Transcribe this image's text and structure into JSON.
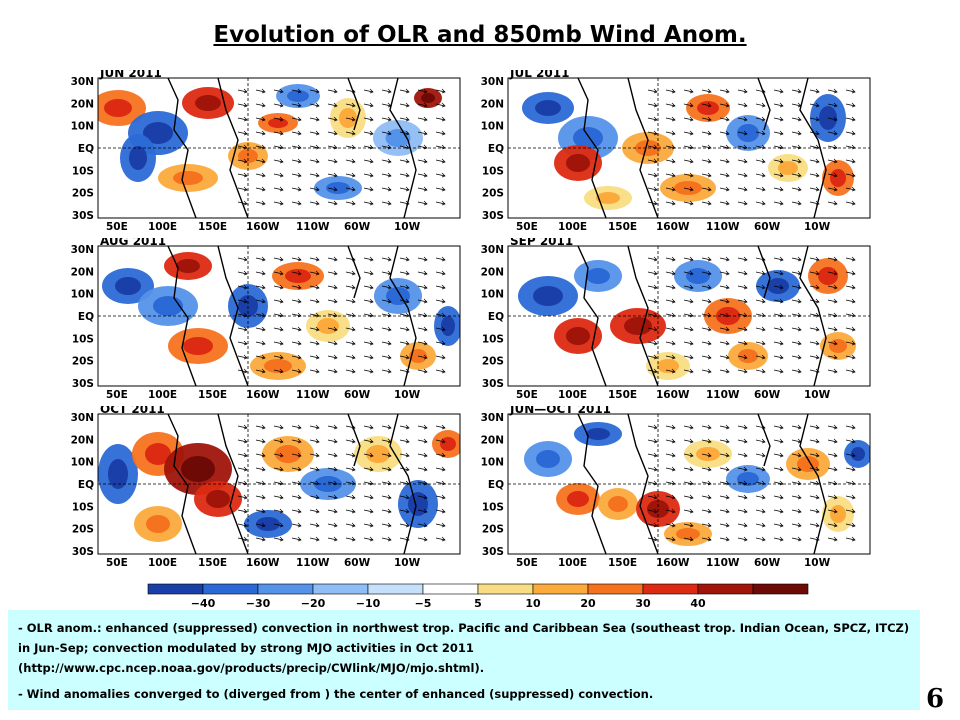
{
  "title": "Evolution of OLR and 850mb Wind Anom.",
  "panels": [
    {
      "label": "JUN 2011"
    },
    {
      "label": "JUL 2011"
    },
    {
      "label": "AUG 2011"
    },
    {
      "label": "SEP 2011"
    },
    {
      "label": "OCT 2011"
    },
    {
      "label": "JUN—OCT 2011"
    }
  ],
  "lat_ticks": [
    "30N",
    "20N",
    "10N",
    "EQ",
    "10S",
    "20S",
    "30S"
  ],
  "lon_ticks": [
    "50E",
    "100E",
    "150E",
    "160W",
    "110W",
    "60W",
    "10W"
  ],
  "colorbar": {
    "labels": [
      "−40",
      "−30",
      "−20",
      "−10",
      "−5",
      "5",
      "10",
      "20",
      "30",
      "40"
    ],
    "colors": [
      "#1a3fa8",
      "#2b6ad6",
      "#5592ea",
      "#8fbdf4",
      "#c4e0fa",
      "#ffffff",
      "#f8dd82",
      "#fcaa3c",
      "#f5731f",
      "#dd2a12",
      "#a0140a",
      "#6e0a06"
    ]
  },
  "notes": [
    "- OLR anom.: enhanced (suppressed) convection in northwest trop. Pacific and Caribbean Sea (southeast trop. Indian Ocean, SPCZ, ITCZ) in Jun-Sep; convection modulated by strong MJO activities in Oct  2011 (http://www.cpc.ncep.noaa.gov/products/precip/CWlink/MJO/mjo.shtml).",
    "- Wind anomalies converged to (diverged from ) the center of enhanced (suppressed) convection."
  ],
  "page_number": "6"
}
